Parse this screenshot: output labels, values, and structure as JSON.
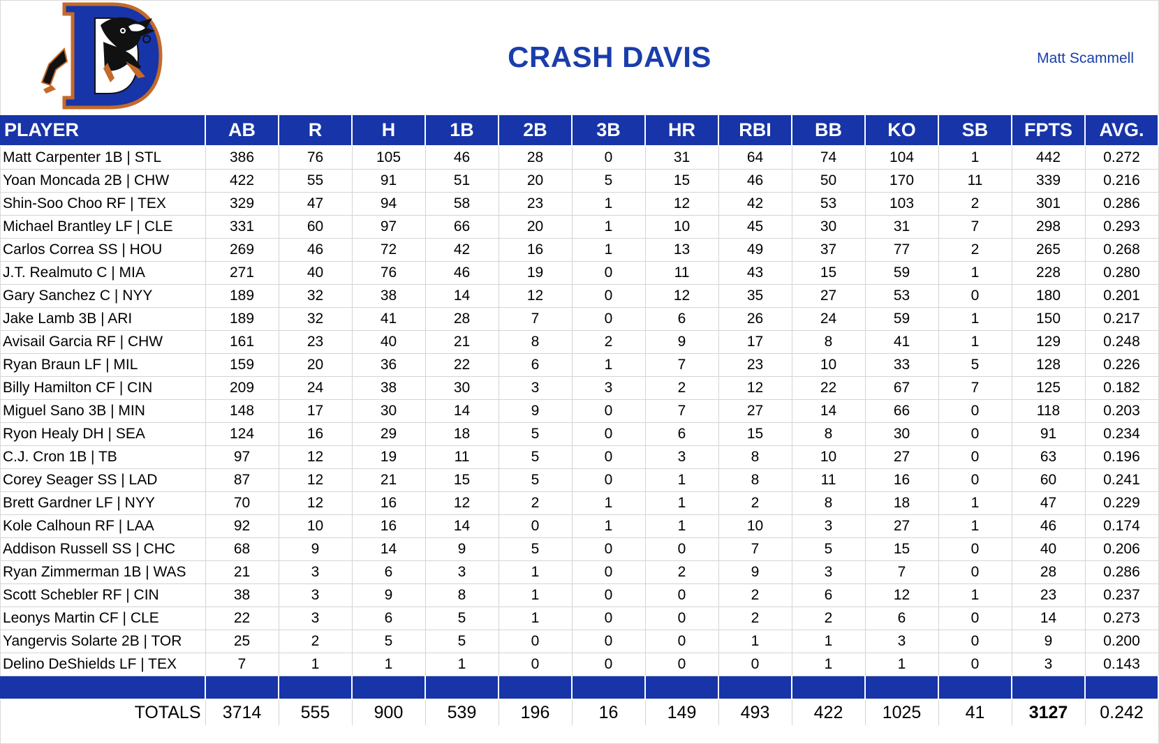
{
  "header": {
    "team_name": "CRASH DAVIS",
    "owner": "Matt Scammell"
  },
  "colors": {
    "header_blue": "#1734a8",
    "title_blue": "#1a3dab"
  },
  "table": {
    "columns": [
      "PLAYER",
      "AB",
      "R",
      "H",
      "1B",
      "2B",
      "3B",
      "HR",
      "RBI",
      "BB",
      "KO",
      "SB",
      "FPTS",
      "AVG."
    ],
    "rows": [
      [
        "Matt Carpenter 1B | STL",
        "386",
        "76",
        "105",
        "46",
        "28",
        "0",
        "31",
        "64",
        "74",
        "104",
        "1",
        "442",
        "0.272"
      ],
      [
        "Yoan Moncada 2B | CHW",
        "422",
        "55",
        "91",
        "51",
        "20",
        "5",
        "15",
        "46",
        "50",
        "170",
        "11",
        "339",
        "0.216"
      ],
      [
        "Shin-Soo Choo RF | TEX",
        "329",
        "47",
        "94",
        "58",
        "23",
        "1",
        "12",
        "42",
        "53",
        "103",
        "2",
        "301",
        "0.286"
      ],
      [
        "Michael Brantley LF | CLE",
        "331",
        "60",
        "97",
        "66",
        "20",
        "1",
        "10",
        "45",
        "30",
        "31",
        "7",
        "298",
        "0.293"
      ],
      [
        "Carlos Correa SS | HOU",
        "269",
        "46",
        "72",
        "42",
        "16",
        "1",
        "13",
        "49",
        "37",
        "77",
        "2",
        "265",
        "0.268"
      ],
      [
        "J.T. Realmuto C | MIA",
        "271",
        "40",
        "76",
        "46",
        "19",
        "0",
        "11",
        "43",
        "15",
        "59",
        "1",
        "228",
        "0.280"
      ],
      [
        "Gary Sanchez C | NYY",
        "189",
        "32",
        "38",
        "14",
        "12",
        "0",
        "12",
        "35",
        "27",
        "53",
        "0",
        "180",
        "0.201"
      ],
      [
        "Jake Lamb 3B | ARI",
        "189",
        "32",
        "41",
        "28",
        "7",
        "0",
        "6",
        "26",
        "24",
        "59",
        "1",
        "150",
        "0.217"
      ],
      [
        "Avisail Garcia RF | CHW",
        "161",
        "23",
        "40",
        "21",
        "8",
        "2",
        "9",
        "17",
        "8",
        "41",
        "1",
        "129",
        "0.248"
      ],
      [
        "Ryan Braun LF | MIL",
        "159",
        "20",
        "36",
        "22",
        "6",
        "1",
        "7",
        "23",
        "10",
        "33",
        "5",
        "128",
        "0.226"
      ],
      [
        "Billy Hamilton CF | CIN",
        "209",
        "24",
        "38",
        "30",
        "3",
        "3",
        "2",
        "12",
        "22",
        "67",
        "7",
        "125",
        "0.182"
      ],
      [
        "Miguel Sano 3B | MIN",
        "148",
        "17",
        "30",
        "14",
        "9",
        "0",
        "7",
        "27",
        "14",
        "66",
        "0",
        "118",
        "0.203"
      ],
      [
        "Ryon Healy DH | SEA",
        "124",
        "16",
        "29",
        "18",
        "5",
        "0",
        "6",
        "15",
        "8",
        "30",
        "0",
        "91",
        "0.234"
      ],
      [
        "C.J. Cron 1B | TB",
        "97",
        "12",
        "19",
        "11",
        "5",
        "0",
        "3",
        "8",
        "10",
        "27",
        "0",
        "63",
        "0.196"
      ],
      [
        "Corey Seager SS | LAD",
        "87",
        "12",
        "21",
        "15",
        "5",
        "0",
        "1",
        "8",
        "11",
        "16",
        "0",
        "60",
        "0.241"
      ],
      [
        "Brett Gardner LF | NYY",
        "70",
        "12",
        "16",
        "12",
        "2",
        "1",
        "1",
        "2",
        "8",
        "18",
        "1",
        "47",
        "0.229"
      ],
      [
        "Kole Calhoun RF | LAA",
        "92",
        "10",
        "16",
        "14",
        "0",
        "1",
        "1",
        "10",
        "3",
        "27",
        "1",
        "46",
        "0.174"
      ],
      [
        "Addison Russell SS | CHC",
        "68",
        "9",
        "14",
        "9",
        "5",
        "0",
        "0",
        "7",
        "5",
        "15",
        "0",
        "40",
        "0.206"
      ],
      [
        "Ryan Zimmerman 1B | WAS",
        "21",
        "3",
        "6",
        "3",
        "1",
        "0",
        "2",
        "9",
        "3",
        "7",
        "0",
        "28",
        "0.286"
      ],
      [
        "Scott Schebler RF | CIN",
        "38",
        "3",
        "9",
        "8",
        "1",
        "0",
        "0",
        "2",
        "6",
        "12",
        "1",
        "23",
        "0.237"
      ],
      [
        "Leonys Martin CF | CLE",
        "22",
        "3",
        "6",
        "5",
        "1",
        "0",
        "0",
        "2",
        "2",
        "6",
        "0",
        "14",
        "0.273"
      ],
      [
        "Yangervis Solarte 2B | TOR",
        "25",
        "2",
        "5",
        "5",
        "0",
        "0",
        "0",
        "1",
        "1",
        "3",
        "0",
        "9",
        "0.200"
      ],
      [
        "Delino DeShields LF | TEX",
        "7",
        "1",
        "1",
        "1",
        "0",
        "0",
        "0",
        "0",
        "1",
        "1",
        "0",
        "3",
        "0.143"
      ]
    ],
    "totals": [
      "TOTALS",
      "3714",
      "555",
      "900",
      "539",
      "196",
      "16",
      "149",
      "493",
      "422",
      "1025",
      "41",
      "3127",
      "0.242"
    ]
  }
}
